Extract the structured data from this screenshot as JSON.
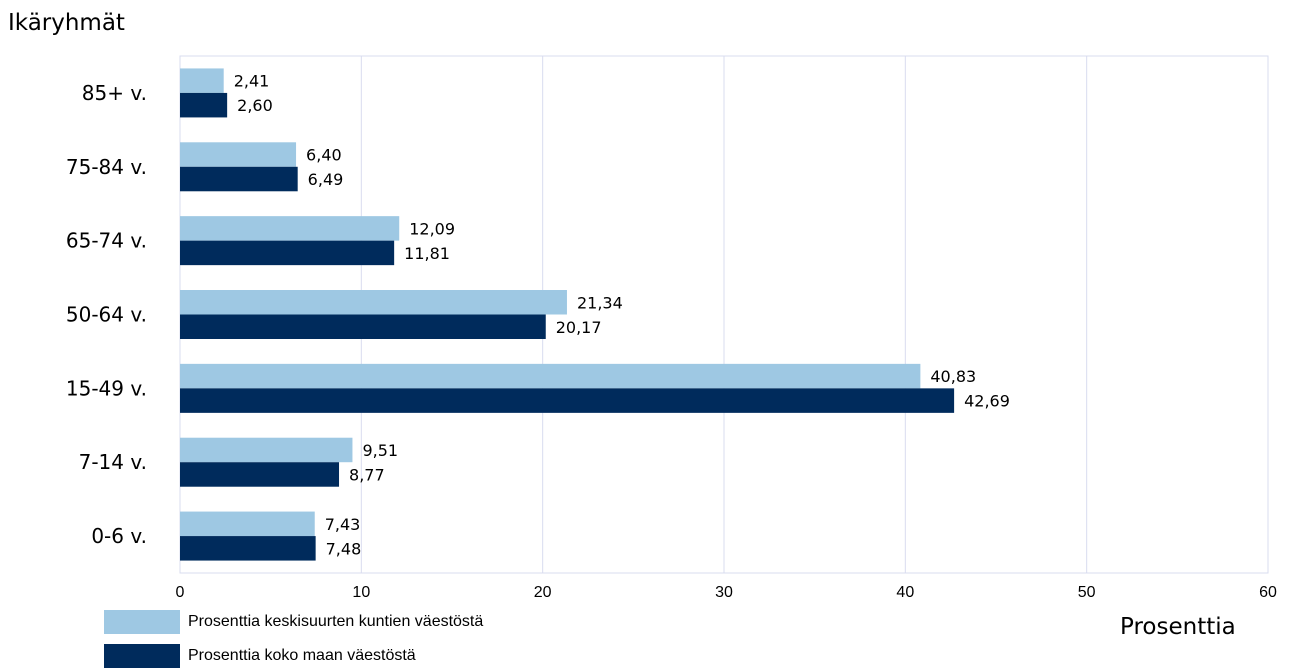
{
  "chart_data": {
    "type": "bar",
    "orientation": "horizontal",
    "categories": [
      "85+ v.",
      "75-84 v.",
      "65-74 v.",
      "50-64 v.",
      "15-49 v.",
      "7-14 v.",
      "0-6 v."
    ],
    "series": [
      {
        "name": "Prosenttia keskisuurten kuntien väestöstä",
        "color": "#9ec8e3",
        "values": [
          2.41,
          6.4,
          12.09,
          21.34,
          40.83,
          9.51,
          7.43
        ],
        "labels": [
          "2,41",
          "6,40",
          "12,09",
          "21,34",
          "40,83",
          "9,51",
          "7,43"
        ]
      },
      {
        "name": "Prosenttia koko maan väestöstä",
        "color": "#002b5c",
        "values": [
          2.6,
          6.49,
          11.81,
          20.17,
          42.69,
          8.77,
          7.48
        ],
        "labels": [
          "2,60",
          "6,49",
          "11,81",
          "20,17",
          "42,69",
          "8,77",
          "7,48"
        ]
      }
    ],
    "ylabel": "Ikäryhmät",
    "xlabel": "Prosenttia",
    "xlim": [
      0,
      60
    ],
    "xticks": [
      0,
      10,
      20,
      30,
      40,
      50,
      60
    ],
    "grid": true,
    "legend": "bottom-left"
  }
}
